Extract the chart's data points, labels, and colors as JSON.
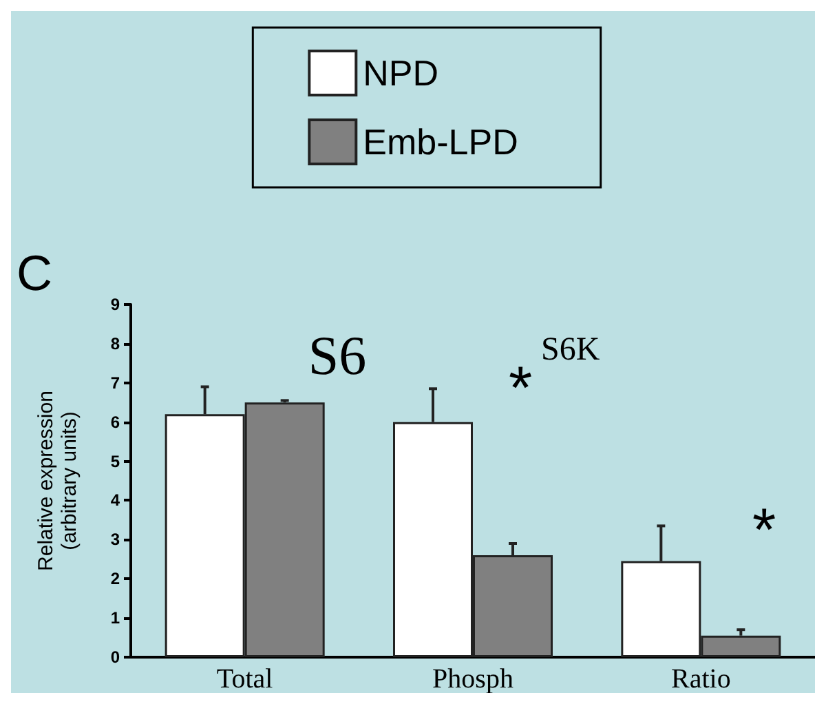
{
  "chart_data": {
    "type": "bar",
    "ylabel": "Relative expression\n(arbitrary units)",
    "categories": [
      "Total",
      "Phosph",
      "Ratio"
    ],
    "series": [
      {
        "name": "NPD",
        "color": "#ffffff",
        "values": [
          6.2,
          6.0,
          2.45
        ],
        "errors": [
          0.7,
          0.85,
          0.9
        ]
      },
      {
        "name": "Emb-LPD",
        "color": "#808080",
        "values": [
          6.5,
          2.6,
          0.55
        ],
        "errors": [
          0.05,
          0.3,
          0.15
        ]
      }
    ],
    "ylim": [
      0,
      9
    ],
    "yticks": [
      0,
      1,
      2,
      3,
      4,
      5,
      6,
      7,
      8,
      9
    ],
    "grid": false,
    "legend": "top",
    "annotations": [
      "C",
      "S6",
      "S6K",
      "*",
      "*"
    ]
  }
}
